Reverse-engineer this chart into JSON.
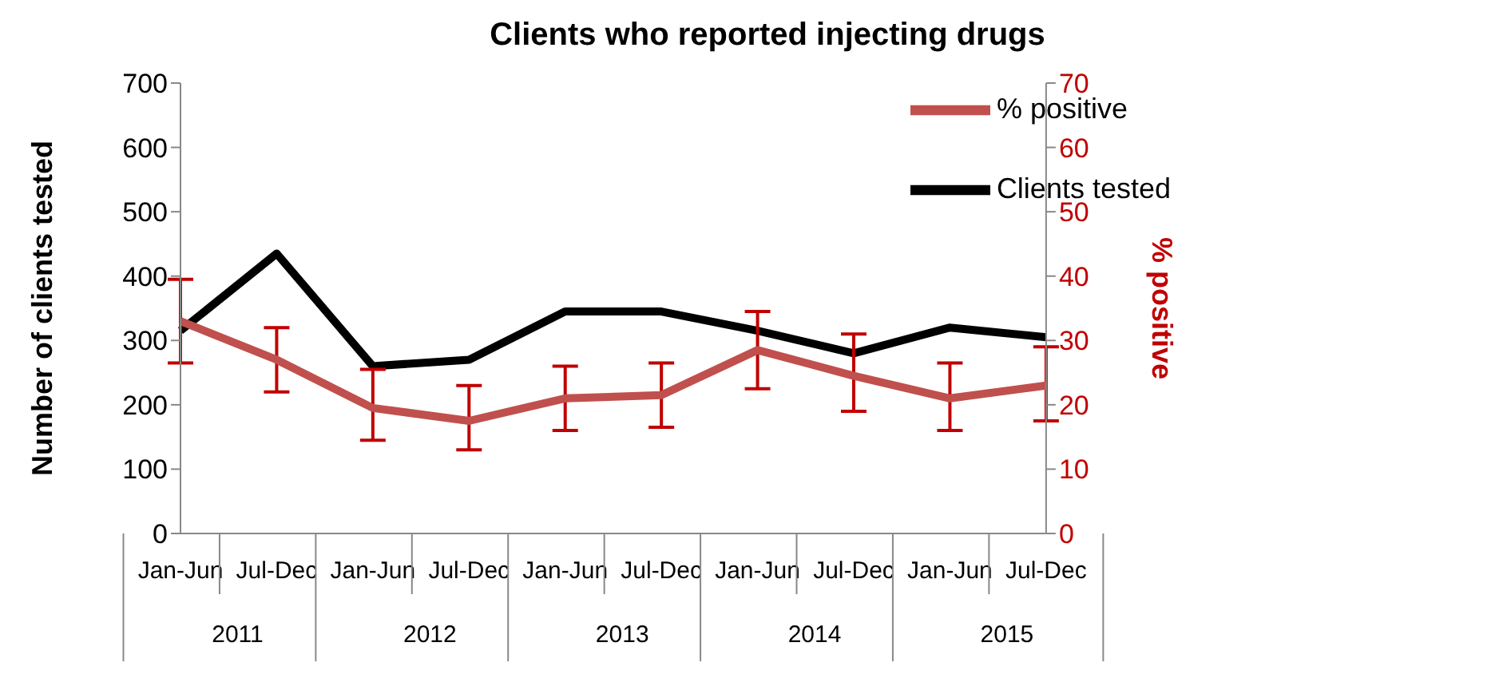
{
  "chart_data": {
    "type": "line",
    "title": "Clients who reported injecting drugs",
    "categories": [
      "Jan-Jun",
      "Jul-Dec",
      "Jan-Jun",
      "Jul-Dec",
      "Jan-Jun",
      "Jul-Dec",
      "Jan-Jun",
      "Jul-Dec",
      "Jan-Jun",
      "Jul-Dec"
    ],
    "annotations": [
      "2011",
      "2012",
      "2013",
      "2014",
      "2015"
    ],
    "ylabel": "Number of clients tested",
    "y2label": "% positive",
    "ylim": [
      0,
      700
    ],
    "yticks": [
      0,
      100,
      200,
      300,
      400,
      500,
      600,
      700
    ],
    "y2lim": [
      0,
      70
    ],
    "y2ticks": [
      0,
      10,
      20,
      30,
      40,
      50,
      60,
      70
    ],
    "series": [
      {
        "name": "Clients tested",
        "color": "#000000",
        "values": [
          315,
          435,
          260,
          270,
          345,
          345,
          315,
          280,
          320,
          305
        ]
      },
      {
        "name": "% positive",
        "color": "#c0504d",
        "axis": "y2",
        "values": [
          33,
          27,
          19.5,
          17.5,
          21,
          21.5,
          28.5,
          24.5,
          21,
          23
        ],
        "errors": [
          [
            26.5,
            39.5
          ],
          [
            22,
            32
          ],
          [
            14.5,
            25.5
          ],
          [
            13,
            23
          ],
          [
            16,
            26
          ],
          [
            16.5,
            26.5
          ],
          [
            22.5,
            34.5
          ],
          [
            19,
            31
          ],
          [
            16,
            26.5
          ],
          [
            17.5,
            29
          ]
        ]
      }
    ],
    "grid": false,
    "legend": "top right",
    "marker": "none",
    "line_style": "solid"
  }
}
